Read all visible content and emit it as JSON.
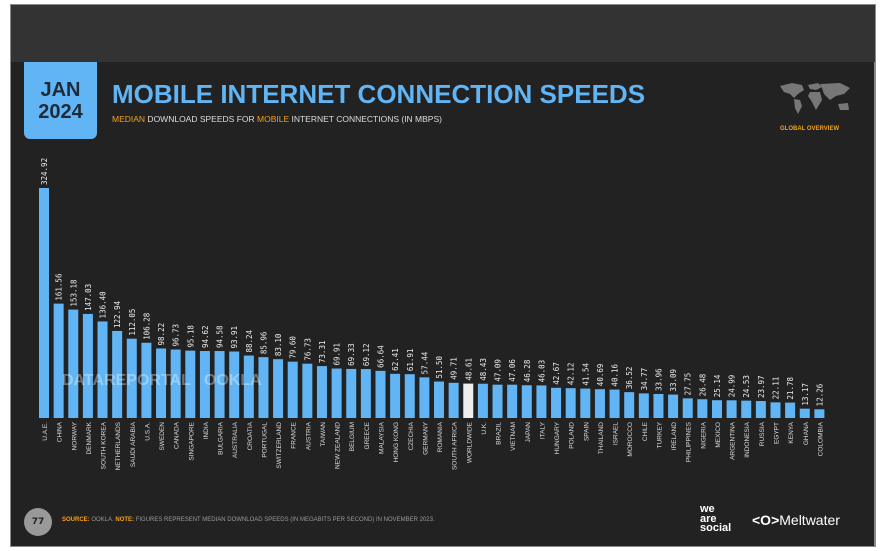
{
  "header": {
    "date_month": "JAN",
    "date_year": "2024",
    "title": "MOBILE INTERNET CONNECTION SPEEDS",
    "subtitle_parts": [
      "MEDIAN",
      " DOWNLOAD SPEEDS FOR ",
      "MOBILE",
      " INTERNET CONNECTIONS (IN MBPS)"
    ],
    "section": "GLOBAL OVERVIEW"
  },
  "footer": {
    "page_number": "77",
    "source_label": "SOURCE:",
    "source_text": "OOKLA.",
    "note_label": "NOTE:",
    "note_text": "FIGURES REPRESENT MEDIAN DOWNLOAD SPEEDS (IN MEGABITS PER SECOND) IN NOVEMBER 2023.",
    "brand_1": "we are social",
    "brand_2": "Meltwater"
  },
  "watermark": "DATAREPORTAL   OOKLA",
  "colors": {
    "bar": "#62b5f4",
    "highlight_bar": "#eeeeee",
    "accent": "#f5a21b",
    "background": "#222222"
  },
  "chart_data": {
    "type": "bar",
    "title": "MOBILE INTERNET CONNECTION SPEEDS",
    "subtitle": "MEDIAN DOWNLOAD SPEEDS FOR MOBILE INTERNET CONNECTIONS (IN MBPS)",
    "highlight": "WORLDWIDE",
    "grid": false,
    "categories": [
      "U.A.E.",
      "CHINA",
      "NORWAY",
      "DENMARK",
      "SOUTH KOREA",
      "NETHERLANDS",
      "SAUDI ARABIA",
      "U.S.A.",
      "SWEDEN",
      "CANADA",
      "SINGAPORE",
      "INDIA",
      "BULGARIA",
      "AUSTRALIA",
      "CROATIA",
      "PORTUGAL",
      "SWITZERLAND",
      "FRANCE",
      "AUSTRIA",
      "TAIWAN",
      "NEW ZEALAND",
      "BELGIUM",
      "GREECE",
      "MALAYSIA",
      "HONG KONG",
      "CZECHIA",
      "GERMANY",
      "ROMANIA",
      "SOUTH AFRICA",
      "WORLDWIDE",
      "U.K.",
      "BRAZIL",
      "VIETNAM",
      "JAPAN",
      "ITALY",
      "HUNGARY",
      "POLAND",
      "SPAIN",
      "THAILAND",
      "ISRAEL",
      "MOROCCO",
      "CHILE",
      "TURKEY",
      "IRELAND",
      "PHILIPPINES",
      "NIGERIA",
      "MEXICO",
      "ARGENTINA",
      "INDONESIA",
      "RUSSIA",
      "EGYPT",
      "KENYA",
      "GHANA",
      "COLOMBIA"
    ],
    "value_labels": [
      "324.92",
      "161.56",
      "153.18",
      "147.03",
      "136.40",
      "122.94",
      "112.05",
      "106.28",
      "98.22",
      "96.73",
      "95.18",
      "94.62",
      "94.58",
      "93.91",
      "88.24",
      "85.96",
      "83.10",
      "79.60",
      "76.73",
      "73.31",
      "69.91",
      "69.33",
      "69.12",
      "66.64",
      "62.41",
      "61.91",
      "57.44",
      "51.50",
      "49.71",
      "48.61",
      "48.43",
      "47.09",
      "47.06",
      "46.28",
      "46.03",
      "42.67",
      "42.12",
      "41.54",
      "40.69",
      "40.16",
      "36.52",
      "34.77",
      "33.96",
      "33.09",
      "27.75",
      "26.48",
      "25.14",
      "24.99",
      "24.53",
      "23.97",
      "22.11",
      "21.78",
      "13.17",
      "12.26"
    ],
    "values": [
      324.92,
      161.56,
      153.18,
      147.03,
      136.4,
      122.94,
      112.05,
      106.28,
      98.22,
      96.73,
      95.18,
      94.62,
      94.58,
      93.91,
      88.24,
      85.96,
      83.1,
      79.6,
      76.73,
      73.31,
      69.91,
      69.33,
      69.12,
      66.64,
      62.41,
      61.91,
      57.44,
      51.5,
      49.71,
      48.61,
      48.43,
      47.09,
      47.06,
      46.28,
      46.03,
      42.67,
      42.12,
      41.54,
      40.69,
      40.16,
      36.52,
      34.77,
      33.96,
      33.09,
      27.75,
      26.48,
      25.14,
      24.99,
      24.53,
      23.97,
      22.11,
      21.78,
      13.17,
      12.26
    ],
    "ylim": [
      0,
      324.92
    ]
  }
}
